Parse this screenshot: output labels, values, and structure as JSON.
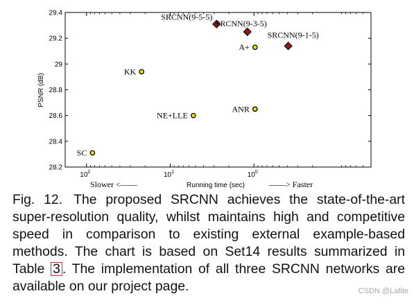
{
  "chart_data": {
    "type": "scatter",
    "xlabel": "Running time (sec)",
    "ylabel": "PSNR (dB)",
    "x_scale": "log",
    "x_reversed": true,
    "xlim": [
      180,
      0.04
    ],
    "ylim": [
      28.2,
      29.4
    ],
    "x_ticks": [
      {
        "value": 100,
        "base": "10",
        "exp": "2"
      },
      {
        "value": 10,
        "base": "10",
        "exp": "1"
      },
      {
        "value": 1,
        "base": "10",
        "exp": "0"
      }
    ],
    "y_ticks": [
      {
        "value": 28.2,
        "label": "28.2"
      },
      {
        "value": 28.4,
        "label": "28.4"
      },
      {
        "value": 28.6,
        "label": "28.6"
      },
      {
        "value": 28.8,
        "label": "28.8"
      },
      {
        "value": 29.0,
        "label": "29"
      },
      {
        "value": 29.2,
        "label": "29.2"
      },
      {
        "value": 29.4,
        "label": "29.4"
      }
    ],
    "grid": false,
    "slower_label": "Slower <——",
    "faster_label": "——> Faster",
    "points": [
      {
        "label": "SC",
        "x": 85,
        "y": 28.31,
        "marker": "circle",
        "color": "#f2e200",
        "label_side": "left"
      },
      {
        "label": "KK",
        "x": 22,
        "y": 28.94,
        "marker": "circle",
        "color": "#f2e200",
        "label_side": "left"
      },
      {
        "label": "NE+LLE",
        "x": 5.3,
        "y": 28.6,
        "marker": "circle",
        "color": "#f2e200",
        "label_side": "left"
      },
      {
        "label": "ANR",
        "x": 0.97,
        "y": 28.65,
        "marker": "circle",
        "color": "#f2e200",
        "label_side": "left"
      },
      {
        "label": "A+",
        "x": 0.97,
        "y": 29.13,
        "marker": "circle",
        "color": "#f2e200",
        "label_side": "left"
      },
      {
        "label": "SRCNN(9-5-5)",
        "x": 2.8,
        "y": 29.31,
        "marker": "diamond",
        "color": "#8b1a1a",
        "label_side": "upper-left"
      },
      {
        "label": "SRCNN(9-3-5)",
        "x": 1.2,
        "y": 29.25,
        "marker": "diamond",
        "color": "#8b1a1a",
        "label_side": "upper-right"
      },
      {
        "label": "SRCNN(9-1-5)",
        "x": 0.39,
        "y": 29.14,
        "marker": "diamond",
        "color": "#8b1a1a",
        "label_side": "upper"
      }
    ]
  },
  "caption": {
    "fig_label": "Fig. 12.",
    "text_before_ref": "The proposed SRCNN achieves the state-of-the-art super-resolution quality, whilst maintains high and competitive speed in comparison to existing external example-based methods. The chart is based on Set14 results summarized in Table ",
    "ref": "3",
    "text_after_ref": ". The implementation of all three SRCNN networks are available on our project page."
  },
  "watermark": "CSDN @Lafite"
}
